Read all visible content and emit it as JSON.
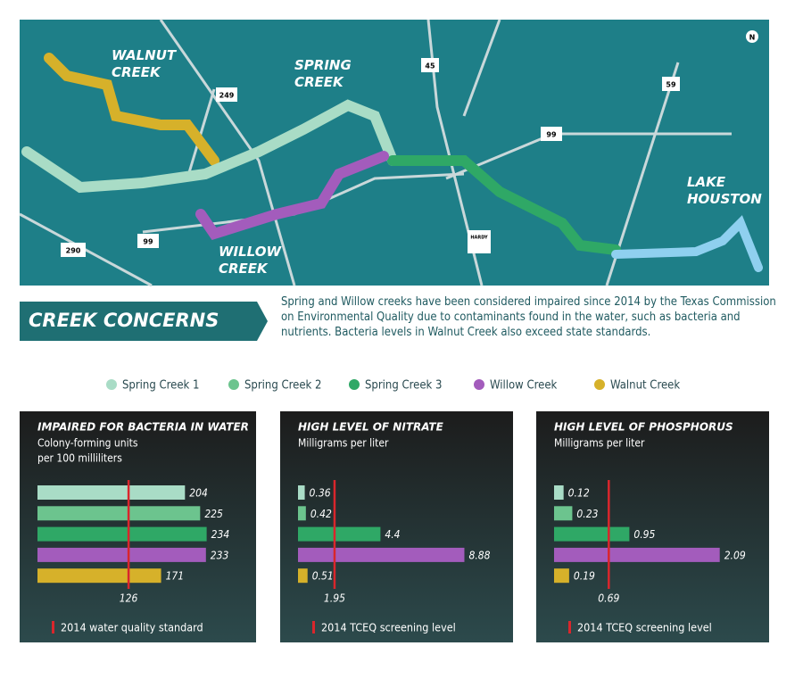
{
  "map": {
    "labels": [
      "WALNUT CREEK",
      "SPRING CREEK",
      "WILLOW CREEK",
      "LAKE HOUSTON"
    ],
    "highways": [
      "249",
      "45",
      "59",
      "99",
      "99",
      "290",
      "HARDY"
    ],
    "compass": "N"
  },
  "banner": {
    "title": "CREEK CONCERNS",
    "text": "Spring and Willow creeks have been considered impaired since 2014 by the Texas Commission on Environmental Quality due to contaminants found in the water, such as bacteria and nutrients. Bacteria levels in Walnut Creek also exceed state standards."
  },
  "legend": {
    "names": [
      "Spring Creek 1",
      "Spring Creek 2",
      "Spring Creek 3",
      "Willow Creek",
      "Walnut Creek"
    ],
    "colors": [
      "#a9dcc6",
      "#6cc48e",
      "#2fa866",
      "#a35cbc",
      "#d6b12a"
    ]
  },
  "chart_data": [
    {
      "type": "bar",
      "orientation": "horizontal",
      "title": "IMPAIRED FOR BACTERIA IN WATER",
      "subtitle": [
        "Colony-forming units",
        "per 100 milliliters"
      ],
      "values": [
        204,
        225,
        234,
        233,
        171
      ],
      "xlim": [
        0,
        290
      ],
      "reference": 126,
      "reference_label": "2014 water quality standard",
      "reference_color": "#d9262c"
    },
    {
      "type": "bar",
      "orientation": "horizontal",
      "title": "HIGH LEVEL OF NITRATE",
      "subtitle": [
        "Milligrams per liter"
      ],
      "values": [
        0.36,
        0.42,
        4.4,
        8.88,
        0.51
      ],
      "xlim": [
        0,
        11
      ],
      "reference": 1.95,
      "reference_label": "2014 TCEQ screening level",
      "reference_color": "#d9262c"
    },
    {
      "type": "bar",
      "orientation": "horizontal",
      "title": "HIGH LEVEL OF PHOSPHORUS",
      "subtitle": [
        "Milligrams per liter"
      ],
      "values": [
        0.12,
        0.23,
        0.95,
        2.09,
        0.19
      ],
      "xlim": [
        0,
        2.6
      ],
      "reference": 0.69,
      "reference_label": "2014 TCEQ screening level",
      "reference_color": "#d9262c"
    }
  ]
}
